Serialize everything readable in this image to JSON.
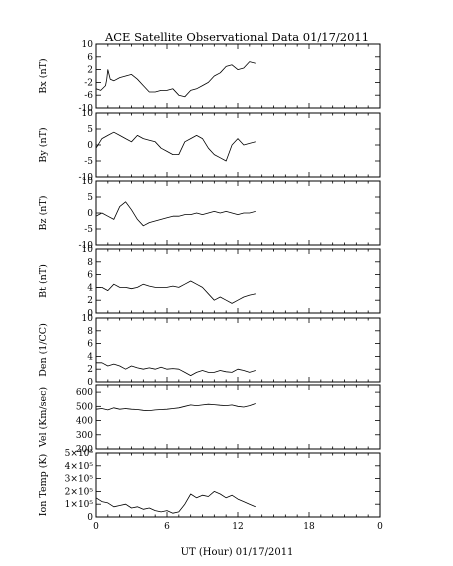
{
  "title": "ACE Satellite Observational Data   01/17/2011",
  "xlabel": "UT (Hour)  01/17/2011",
  "chart_data": [
    {
      "type": "line",
      "ylabel": "Bx (nT)",
      "xlim": [
        0,
        24
      ],
      "ylim": [
        -10,
        10
      ],
      "yticks": [
        "-10",
        "-6",
        "-2",
        "2",
        "6",
        "10"
      ],
      "ytick_values": [
        -10,
        -6,
        -2,
        2,
        6,
        10
      ],
      "x": [
        0,
        0.4,
        0.8,
        0.9,
        1.0,
        1.2,
        1.5,
        2.0,
        2.5,
        3.0,
        3.5,
        4.0,
        4.5,
        5.0,
        5.5,
        6.0,
        6.5,
        7.0,
        7.5,
        8.0,
        8.5,
        9.0,
        9.5,
        10.0,
        10.5,
        11.0,
        11.5,
        12.0,
        12.5,
        13.0,
        13.5
      ],
      "values": [
        -4,
        -4.5,
        -3,
        -1,
        2,
        -1,
        -1.5,
        -0.5,
        0,
        0.5,
        -1,
        -3,
        -5,
        -5,
        -4.5,
        -4.5,
        -4,
        -6,
        -6.5,
        -4.5,
        -4,
        -3,
        -2,
        0,
        1,
        3,
        3.5,
        2,
        2.5,
        4.5,
        4
      ]
    },
    {
      "type": "line",
      "ylabel": "By (nT)",
      "xlim": [
        0,
        24
      ],
      "ylim": [
        -10,
        10
      ],
      "yticks": [
        "-10",
        "-5",
        "0",
        "5",
        "10"
      ],
      "ytick_values": [
        -10,
        -5,
        0,
        5,
        10
      ],
      "x": [
        0,
        0.5,
        1.0,
        1.5,
        2.0,
        2.5,
        3.0,
        3.5,
        4.0,
        4.5,
        5.0,
        5.5,
        6.0,
        6.5,
        7.0,
        7.5,
        8.0,
        8.5,
        9.0,
        9.5,
        10.0,
        10.5,
        11.0,
        11.5,
        12.0,
        12.5,
        13.0,
        13.5
      ],
      "values": [
        -1,
        2,
        3,
        4,
        3,
        2,
        1,
        3,
        2,
        1.5,
        1,
        -1,
        -2,
        -3,
        -3,
        1,
        2,
        3,
        2,
        -1,
        -3,
        -4,
        -5,
        0,
        2,
        0,
        0.5,
        1
      ]
    },
    {
      "type": "line",
      "ylabel": "Bz (nT)",
      "xlim": [
        0,
        24
      ],
      "ylim": [
        -10,
        10
      ],
      "yticks": [
        "-10",
        "-5",
        "0",
        "5",
        "10"
      ],
      "ytick_values": [
        -10,
        -5,
        0,
        5,
        10
      ],
      "x": [
        0,
        0.5,
        1.0,
        1.5,
        2.0,
        2.5,
        3.0,
        3.5,
        4.0,
        4.5,
        5.0,
        5.5,
        6.0,
        6.5,
        7.0,
        7.5,
        8.0,
        8.5,
        9.0,
        9.5,
        10.0,
        10.5,
        11.0,
        11.5,
        12.0,
        12.5,
        13.0,
        13.5
      ],
      "values": [
        -1,
        0,
        -1,
        -2,
        2,
        3.5,
        1,
        -2,
        -4,
        -3,
        -2.5,
        -2,
        -1.5,
        -1,
        -1,
        -0.5,
        -0.5,
        0,
        -0.5,
        0,
        0.5,
        0,
        0.5,
        0,
        -0.5,
        0,
        0,
        0.5
      ]
    },
    {
      "type": "line",
      "ylabel": "Bt (nT)",
      "xlim": [
        0,
        24
      ],
      "ylim": [
        0,
        10
      ],
      "yticks": [
        "0",
        "2",
        "4",
        "6",
        "8",
        "10"
      ],
      "ytick_values": [
        0,
        2,
        4,
        6,
        8,
        10
      ],
      "x": [
        0,
        0.5,
        1.0,
        1.5,
        2.0,
        2.5,
        3.0,
        3.5,
        4.0,
        4.5,
        5.0,
        5.5,
        6.0,
        6.5,
        7.0,
        7.5,
        8.0,
        8.5,
        9.0,
        9.5,
        10.0,
        10.5,
        11.0,
        11.5,
        12.0,
        12.5,
        13.0,
        13.5
      ],
      "values": [
        4,
        4,
        3.5,
        4.5,
        4,
        4,
        3.8,
        4,
        4.5,
        4.2,
        4,
        4,
        4,
        4.2,
        4,
        4.5,
        5,
        4.5,
        4,
        3,
        2,
        2.5,
        2,
        1.5,
        2,
        2.5,
        2.8,
        3
      ]
    },
    {
      "type": "line",
      "ylabel": "Den (1/CC)",
      "xlim": [
        0,
        24
      ],
      "ylim": [
        0,
        10
      ],
      "yticks": [
        "0",
        "2",
        "4",
        "6",
        "8",
        "10"
      ],
      "ytick_values": [
        0,
        2,
        4,
        6,
        8,
        10
      ],
      "x": [
        0,
        0.5,
        1.0,
        1.5,
        2.0,
        2.5,
        3.0,
        3.5,
        4.0,
        4.5,
        5.0,
        5.5,
        6.0,
        6.5,
        7.0,
        7.5,
        8.0,
        8.5,
        9.0,
        9.5,
        10.0,
        10.5,
        11.0,
        11.5,
        12.0,
        12.5,
        13.0,
        13.5
      ],
      "values": [
        3,
        3,
        2.5,
        2.8,
        2.5,
        2,
        2.5,
        2.2,
        2,
        2.2,
        2,
        2.3,
        2,
        2.1,
        2,
        1.5,
        1,
        1.5,
        1.8,
        1.5,
        1.5,
        1.8,
        1.6,
        1.5,
        2,
        1.8,
        1.5,
        1.8
      ]
    },
    {
      "type": "line",
      "ylabel": "Vel (Km/sec)",
      "xlim": [
        0,
        24
      ],
      "ylim": [
        200,
        650
      ],
      "yticks": [
        "200",
        "300",
        "400",
        "500",
        "600"
      ],
      "ytick_values": [
        200,
        300,
        400,
        500,
        600
      ],
      "x": [
        0,
        0.5,
        1.0,
        1.5,
        2.0,
        2.5,
        3.0,
        3.5,
        4.0,
        4.5,
        5.0,
        5.5,
        6.0,
        6.5,
        7.0,
        7.5,
        8.0,
        8.5,
        9.0,
        9.5,
        10.0,
        10.5,
        11.0,
        11.5,
        12.0,
        12.5,
        13.0,
        13.5
      ],
      "values": [
        480,
        485,
        475,
        490,
        480,
        485,
        480,
        478,
        472,
        470,
        475,
        478,
        480,
        485,
        490,
        500,
        510,
        505,
        510,
        515,
        512,
        508,
        505,
        510,
        500,
        495,
        505,
        520
      ]
    },
    {
      "type": "line",
      "ylabel": "Ion Temp (K)",
      "xlim": [
        0,
        24
      ],
      "ylim": [
        0,
        500000
      ],
      "yticks": [
        "0",
        "1×10⁵",
        "2×10⁵",
        "3×10⁵",
        "4×10⁵",
        "5×10⁵"
      ],
      "ytick_values": [
        0,
        100000,
        200000,
        300000,
        400000,
        500000
      ],
      "x": [
        0,
        0.5,
        1.0,
        1.5,
        2.0,
        2.5,
        3.0,
        3.5,
        4.0,
        4.5,
        5.0,
        5.5,
        6.0,
        6.5,
        7.0,
        7.5,
        8.0,
        8.5,
        9.0,
        9.5,
        10.0,
        10.5,
        11.0,
        11.5,
        12.0,
        12.5,
        13.0,
        13.5
      ],
      "values": [
        150000,
        120000,
        110000,
        80000,
        90000,
        100000,
        70000,
        80000,
        60000,
        70000,
        50000,
        40000,
        50000,
        30000,
        40000,
        100000,
        180000,
        150000,
        170000,
        160000,
        200000,
        180000,
        150000,
        170000,
        140000,
        120000,
        100000,
        80000
      ]
    }
  ],
  "xticks": [
    "0",
    "6",
    "12",
    "18",
    "0"
  ],
  "xtick_values": [
    0,
    6,
    12,
    18,
    24
  ]
}
